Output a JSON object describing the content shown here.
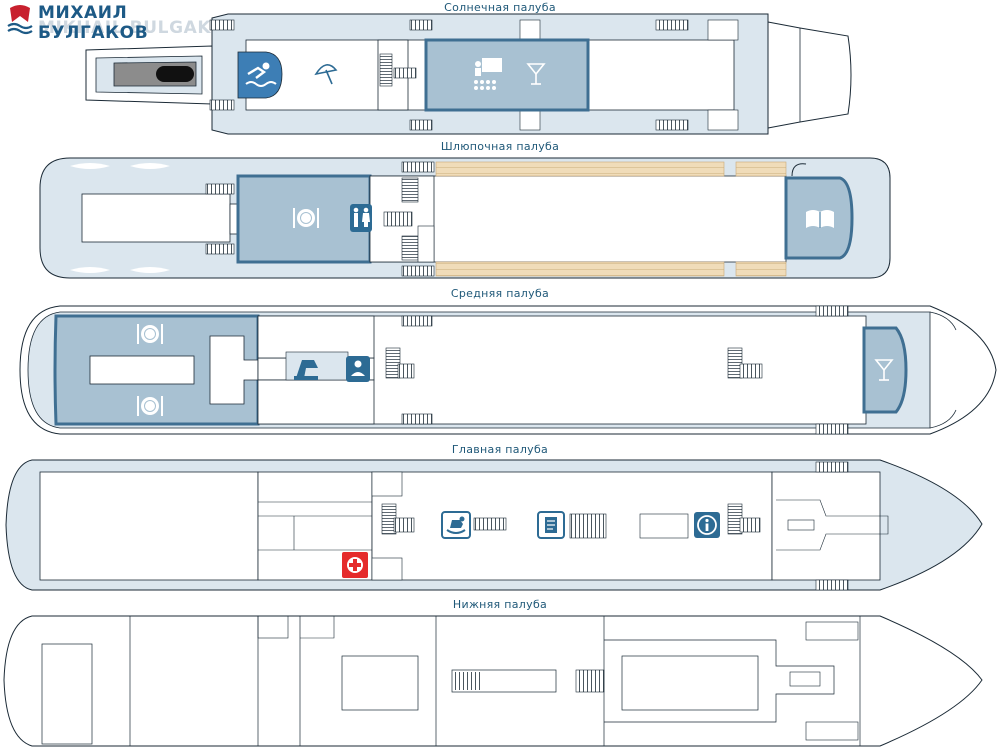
{
  "brand": {
    "name_ru": "МИХАИЛ БУЛГАКОВ",
    "name_en": "MIKHAIL BULGAKOV",
    "colors": {
      "primary": "#1d5a86",
      "accent": "#c8202e"
    }
  },
  "decks": [
    {
      "id": "sun",
      "name": "Солнечная палуба",
      "icons": [
        "pool-icon",
        "sun-umbrella-icon",
        "conference-icon",
        "cocktail-icon"
      ]
    },
    {
      "id": "boat",
      "name": "Шлюпочная палуба",
      "icons": [
        "restaurant-icon",
        "restroom-icon",
        "library-icon"
      ]
    },
    {
      "id": "middle",
      "name": "Средняя палуба",
      "icons": [
        "restaurant-icon",
        "restaurant-icon",
        "souvenir-icon",
        "bar-icon",
        "cocktail-icon"
      ]
    },
    {
      "id": "main",
      "name": "Главная палуба",
      "icons": [
        "medical-icon",
        "kids-room-icon",
        "reception-desk-icon",
        "info-icon"
      ]
    },
    {
      "id": "lower",
      "name": "Нижняя палуба",
      "icons": []
    }
  ],
  "colors": {
    "deck_fill": "#dbe6ee",
    "deck_stroke": "#1b2a36",
    "venue_fill": "#a8c1d2",
    "venue_edge": "#3f6f92",
    "icon_fill": "#2d6b94",
    "wood": "#f0dcb9"
  }
}
